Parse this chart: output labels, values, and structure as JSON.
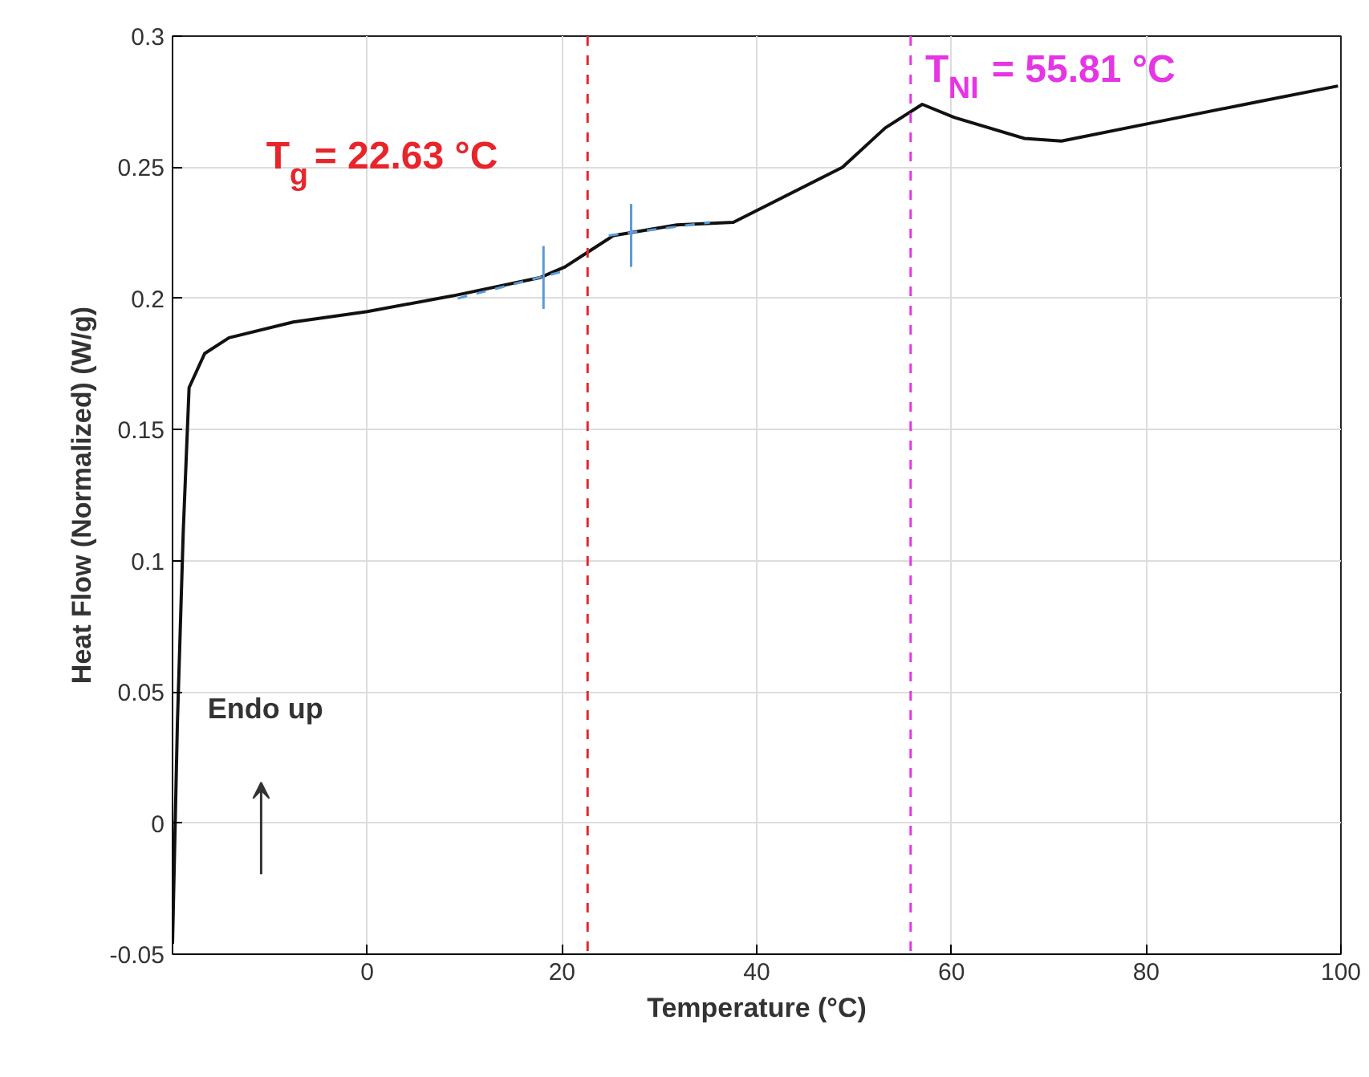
{
  "chart_data": {
    "type": "line",
    "xlabel": "Temperature (°C)",
    "ylabel": "Heat Flow (Normalized) (W/g)",
    "xlim": [
      -20,
      100
    ],
    "ylim": [
      -0.05,
      0.3
    ],
    "xticks": [
      0,
      20,
      40,
      60,
      80,
      100
    ],
    "yticks": [
      -0.05,
      0,
      0.05,
      0.1,
      0.15,
      0.2,
      0.25,
      0.3
    ],
    "grid": true,
    "marker": "none",
    "line_style": "solid",
    "series": [
      {
        "color": "#111111",
        "x": [
          -20,
          -19.5,
          -18.9,
          -18.3,
          -16.7,
          -14.2,
          -7.6,
          0,
          8.8,
          17.8,
          20.3,
          22.8,
          25.3,
          31.8,
          37.6,
          48.8,
          53.2,
          57,
          60.3,
          67.5,
          71.3,
          80.7,
          91.5,
          99.7
        ],
        "values": [
          -0.046,
          0.038,
          0.111,
          0.166,
          0.179,
          0.185,
          0.191,
          0.195,
          0.201,
          0.208,
          0.212,
          0.218,
          0.224,
          0.228,
          0.229,
          0.25,
          0.265,
          0.274,
          0.269,
          0.261,
          0.26,
          0.267,
          0.275,
          0.281
        ]
      },
      {
        "color": "#5b9bd5",
        "line_style": "dashed",
        "x": [
          9.3,
          19.8
        ],
        "values": [
          0.2,
          0.21
        ]
      },
      {
        "color": "#5b9bd5",
        "line_style": "dashed",
        "x": [
          24.8,
          35.2
        ],
        "values": [
          0.224,
          0.229
        ]
      },
      {
        "color": "#5b9bd5",
        "x": [
          18.1,
          18.1
        ],
        "values": [
          0.196,
          0.22
        ]
      },
      {
        "color": "#5b9bd5",
        "x": [
          27.1,
          27.1
        ],
        "values": [
          0.212,
          0.236
        ]
      }
    ],
    "ref_lines": [
      {
        "axis": "x",
        "value": 22.63,
        "label": "T$_{g}$ = 22.63 °C",
        "color": "#e8252a",
        "line_style": "dashed"
      },
      {
        "axis": "x",
        "value": 55.81,
        "label": "T$_{NI}$ = 55.81 °C",
        "color": "#e535e5",
        "line_style": "dashed"
      }
    ],
    "annotations": [
      "Endo up"
    ]
  }
}
